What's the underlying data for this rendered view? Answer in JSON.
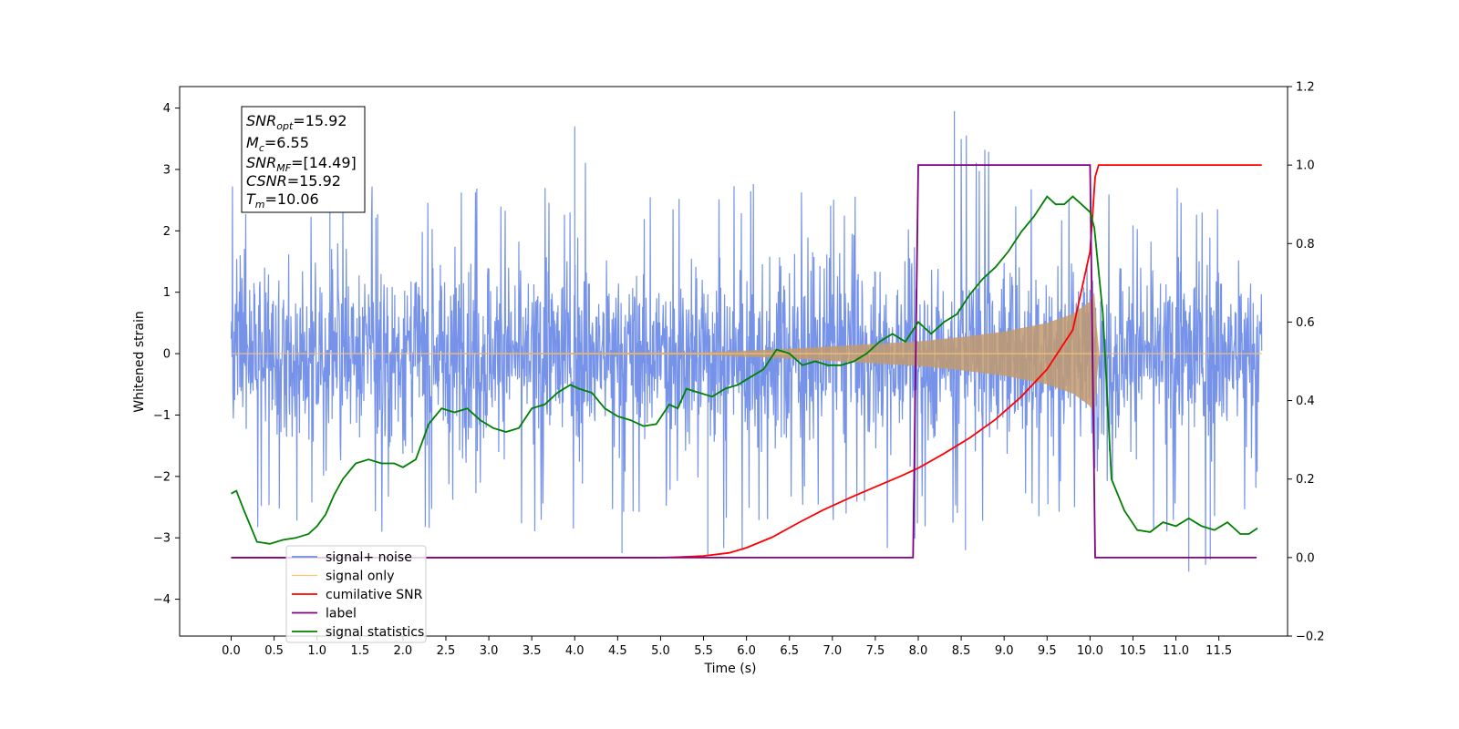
{
  "chart_data": {
    "type": "line",
    "title": "",
    "xlabel": "Time (s)",
    "ylabel": "Whitened strain",
    "y2label": "",
    "xlim": [
      -0.6,
      12.3
    ],
    "ylim": [
      -4.6,
      4.35
    ],
    "y2lim": [
      -0.2,
      1.2
    ],
    "xticks": [
      0.0,
      0.5,
      1.0,
      1.5,
      2.0,
      2.5,
      3.0,
      3.5,
      4.0,
      4.5,
      5.0,
      5.5,
      6.0,
      6.5,
      7.0,
      7.5,
      8.0,
      8.5,
      9.0,
      9.5,
      10.0,
      10.5,
      11.0,
      11.5
    ],
    "xtick_labels": [
      "0.0",
      "0.5",
      "1.0",
      "1.5",
      "2.0",
      "2.5",
      "3.0",
      "3.5",
      "4.0",
      "4.5",
      "5.0",
      "5.5",
      "6.0",
      "6.5",
      "7.0",
      "7.5",
      "8.0",
      "8.5",
      "9.0",
      "9.5",
      "10.0",
      "10.5",
      "11.0",
      "11.5"
    ],
    "yticks": [
      -4,
      -3,
      -2,
      -1,
      0,
      1,
      2,
      3,
      4
    ],
    "ytick_labels": [
      "−4",
      "−3",
      "−2",
      "−1",
      "0",
      "1",
      "2",
      "3",
      "4"
    ],
    "y2ticks": [
      -0.2,
      0.0,
      0.2,
      0.4,
      0.6,
      0.8,
      1.0,
      1.2
    ],
    "y2tick_labels": [
      "−0.2",
      "0.0",
      "0.2",
      "0.4",
      "0.6",
      "0.8",
      "1.0",
      "1.2"
    ],
    "grid": false,
    "legend_position": "lower-left",
    "info_box": {
      "lines": [
        {
          "sym": "SNR",
          "sub": "opt",
          "value": "=15.92"
        },
        {
          "sym": "M",
          "sub": "c",
          "value": "=6.55"
        },
        {
          "sym": "SNR",
          "sub": "MF",
          "value": "=[14.49]"
        },
        {
          "sym": "CSNR",
          "sub": "",
          "value": "=15.92"
        },
        {
          "sym": "T",
          "sub": "m",
          "value": "=10.06"
        }
      ]
    },
    "series": [
      {
        "name": "signal+ noise",
        "axis": "left",
        "color": "#6f8de8",
        "kind": "noise",
        "t_range": [
          0.0,
          12.0
        ],
        "typical_range": [
          -1.6,
          1.6
        ],
        "envelope_max": [
          2.9,
          2.6,
          2.7,
          2.9,
          2.7,
          2.8,
          3.1,
          2.8,
          3.7,
          2.6,
          2.8,
          2.8,
          2.8,
          2.7,
          2.6,
          2.7,
          2.7,
          3.9,
          2.7,
          2.8,
          2.7,
          2.7,
          2.8,
          2.9
        ],
        "envelope_min": [
          -2.9,
          -3.0,
          -2.9,
          -3.1,
          -2.9,
          -2.7,
          -2.8,
          -2.9,
          -2.8,
          -3.3,
          -2.6,
          -3.3,
          -2.8,
          -2.7,
          -3.0,
          -3.2,
          -2.9,
          -3.2,
          -2.8,
          -2.6,
          -2.7,
          -2.9,
          -3.5,
          -2.8
        ],
        "spikes": [
          [
            4.0,
            3.7
          ],
          [
            8.42,
            3.95
          ],
          [
            1.15,
            2.9
          ],
          [
            11.15,
            -3.55
          ],
          [
            11.4,
            -3.35
          ],
          [
            5.55,
            -3.3
          ],
          [
            4.55,
            -3.25
          ],
          [
            8.55,
            -3.2
          ]
        ]
      },
      {
        "name": "signal only",
        "axis": "left",
        "color": "#f6c474",
        "kind": "chirp",
        "envelope_t": [
          0.0,
          5.5,
          6.0,
          6.5,
          7.0,
          7.5,
          8.0,
          8.5,
          9.0,
          9.5,
          9.8,
          10.0,
          10.05,
          10.1,
          12.0
        ],
        "envelope_amp": [
          0.0,
          0.02,
          0.05,
          0.08,
          0.12,
          0.16,
          0.2,
          0.27,
          0.36,
          0.5,
          0.65,
          0.85,
          1.0,
          0.0,
          0.0
        ]
      },
      {
        "name": "cumilative SNR",
        "axis": "right",
        "color": "#ff0000",
        "x": [
          0.0,
          5.0,
          5.2,
          5.5,
          5.8,
          6.0,
          6.3,
          6.6,
          6.9,
          7.2,
          7.5,
          7.8,
          8.0,
          8.3,
          8.6,
          8.9,
          9.2,
          9.5,
          9.8,
          10.0,
          10.06,
          10.1,
          12.0
        ],
        "values": [
          0.0,
          0.0,
          0.001,
          0.004,
          0.012,
          0.025,
          0.052,
          0.088,
          0.122,
          0.152,
          0.18,
          0.208,
          0.228,
          0.265,
          0.305,
          0.352,
          0.41,
          0.48,
          0.58,
          0.78,
          0.97,
          1.0,
          1.0
        ]
      },
      {
        "name": "label",
        "axis": "right",
        "color": "#800080",
        "x": [
          0.0,
          7.94,
          8.0,
          10.0,
          10.06,
          11.94
        ],
        "values": [
          0.0,
          0.0,
          1.0,
          1.0,
          0.0,
          0.0
        ]
      },
      {
        "name": "signal statistics",
        "axis": "right",
        "color": "#008000",
        "x": [
          0.0,
          0.06,
          0.15,
          0.3,
          0.45,
          0.6,
          0.75,
          0.9,
          1.0,
          1.1,
          1.2,
          1.3,
          1.45,
          1.6,
          1.75,
          1.9,
          2.0,
          2.15,
          2.3,
          2.45,
          2.6,
          2.75,
          2.9,
          3.05,
          3.2,
          3.35,
          3.5,
          3.65,
          3.8,
          3.95,
          4.05,
          4.2,
          4.35,
          4.5,
          4.65,
          4.8,
          4.95,
          5.1,
          5.2,
          5.3,
          5.45,
          5.6,
          5.75,
          5.9,
          6.05,
          6.2,
          6.35,
          6.5,
          6.65,
          6.8,
          6.95,
          7.1,
          7.25,
          7.4,
          7.55,
          7.7,
          7.85,
          8.0,
          8.15,
          8.3,
          8.45,
          8.6,
          8.75,
          8.9,
          9.05,
          9.2,
          9.35,
          9.5,
          9.6,
          9.7,
          9.8,
          9.9,
          10.0,
          10.05,
          10.15,
          10.25,
          10.4,
          10.55,
          10.7,
          10.85,
          11.0,
          11.15,
          11.3,
          11.45,
          11.6,
          11.75,
          11.85,
          11.95
        ],
        "values": [
          0.163,
          0.17,
          0.12,
          0.04,
          0.035,
          0.045,
          0.05,
          0.06,
          0.08,
          0.11,
          0.16,
          0.2,
          0.24,
          0.25,
          0.24,
          0.24,
          0.23,
          0.25,
          0.34,
          0.38,
          0.37,
          0.38,
          0.35,
          0.33,
          0.32,
          0.33,
          0.38,
          0.39,
          0.42,
          0.44,
          0.43,
          0.42,
          0.38,
          0.36,
          0.35,
          0.335,
          0.34,
          0.39,
          0.38,
          0.43,
          0.42,
          0.41,
          0.43,
          0.44,
          0.46,
          0.48,
          0.53,
          0.52,
          0.49,
          0.5,
          0.49,
          0.49,
          0.5,
          0.52,
          0.55,
          0.57,
          0.55,
          0.6,
          0.57,
          0.6,
          0.62,
          0.67,
          0.71,
          0.74,
          0.78,
          0.83,
          0.87,
          0.92,
          0.9,
          0.9,
          0.92,
          0.9,
          0.88,
          0.84,
          0.62,
          0.2,
          0.12,
          0.07,
          0.065,
          0.09,
          0.08,
          0.1,
          0.08,
          0.07,
          0.09,
          0.06,
          0.06,
          0.075
        ]
      }
    ]
  }
}
